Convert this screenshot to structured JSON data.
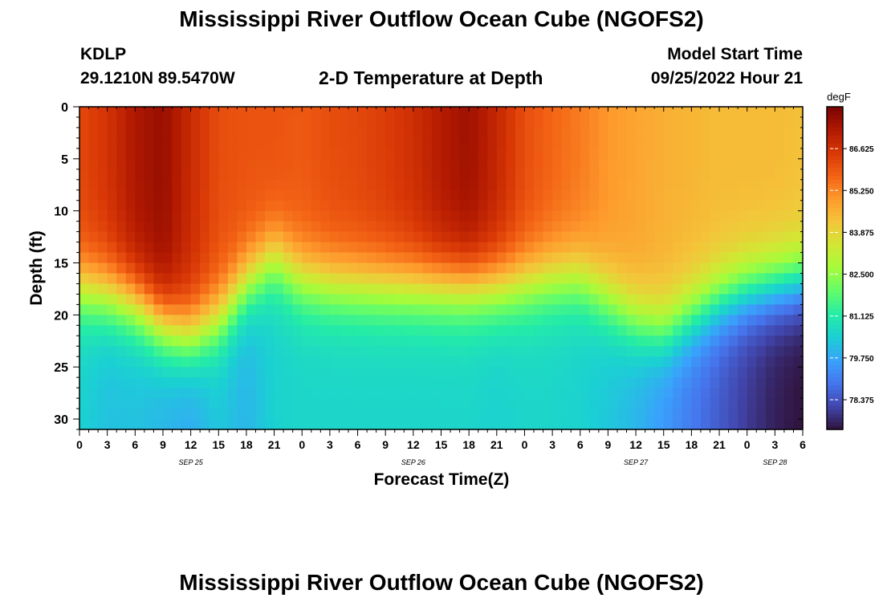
{
  "header": {
    "title": "Mississippi River Outflow Ocean Cube (NGOFS2)",
    "station_id": "KDLP",
    "station_coords": "29.1210N  89.5470W",
    "subtitle": "2-D Temperature at Depth",
    "model_start_label": "Model Start Time",
    "model_start_value": "09/25/2022 Hour 21"
  },
  "footer": {
    "title": "Mississippi River Outflow Ocean Cube (NGOFS2)"
  },
  "chart_data": {
    "type": "heatmap",
    "title": "2-D Temperature at Depth",
    "xlabel": "Forecast Time(Z)",
    "ylabel": "Depth (ft)",
    "x_hours_range": [
      0,
      78
    ],
    "x_tick_labels": [
      "0",
      "3",
      "6",
      "9",
      "12",
      "15",
      "18",
      "21",
      "0",
      "3",
      "6",
      "9",
      "12",
      "15",
      "18",
      "21",
      "0",
      "3",
      "6",
      "9",
      "12",
      "15",
      "18",
      "21",
      "0",
      "3",
      "6"
    ],
    "x_date_labels": [
      {
        "label": "SEP 25",
        "at_tick": 4
      },
      {
        "label": "SEP 26",
        "at_tick": 12
      },
      {
        "label": "SEP 27",
        "at_tick": 20
      },
      {
        "label": "SEP 28",
        "at_tick": 25
      }
    ],
    "y_range": [
      0,
      31
    ],
    "y_ticks": [
      0,
      5,
      10,
      15,
      20,
      25,
      30
    ],
    "colorbar": {
      "unit": "degF",
      "range": [
        77.4,
        88.0
      ],
      "tick_values": [
        86.625,
        85.25,
        83.875,
        82.5,
        81.125,
        79.75,
        78.375
      ],
      "tick_labels": [
        "86.625",
        "85.250",
        "83.875",
        "82.500",
        "81.125",
        "79.750",
        "78.375"
      ],
      "colors": [
        "#30123b",
        "#4145ab",
        "#4675ed",
        "#39a2fc",
        "#1bcfd4",
        "#24eca6",
        "#61fc6c",
        "#a4fc3b",
        "#d1e834",
        "#f3c63a",
        "#fe9b2d",
        "#f36315",
        "#d93806",
        "#b11901",
        "#7a0402"
      ]
    },
    "surface_temp_degF": [
      86.2,
      86.6,
      87.3,
      87.6,
      86.8,
      86.1,
      86.0,
      86.0,
      85.9,
      86.1,
      86.2,
      86.4,
      86.7,
      87.2,
      87.5,
      86.9,
      86.1,
      85.7,
      85.4,
      85.0,
      84.8,
      84.6,
      84.5,
      84.4,
      84.4,
      84.4,
      84.3
    ],
    "bottom_temp_degF": [
      80.5,
      80.2,
      80.2,
      80.0,
      79.8,
      80.3,
      80.0,
      80.5,
      80.6,
      80.6,
      80.6,
      80.6,
      80.6,
      80.6,
      80.6,
      80.5,
      80.6,
      80.6,
      80.5,
      80.3,
      80.0,
      79.5,
      79.0,
      78.5,
      78.0,
      77.6,
      77.4
    ],
    "thermocline_depth_ft": [
      17.5,
      18.0,
      19.0,
      21.0,
      22.0,
      20.5,
      17.0,
      14.5,
      16.5,
      17.0,
      17.2,
      17.3,
      17.3,
      17.3,
      17.3,
      17.3,
      17.0,
      16.5,
      16.5,
      18.5,
      20.5,
      21.5,
      20.0,
      18.5,
      17.5,
      17.0,
      16.5
    ]
  }
}
